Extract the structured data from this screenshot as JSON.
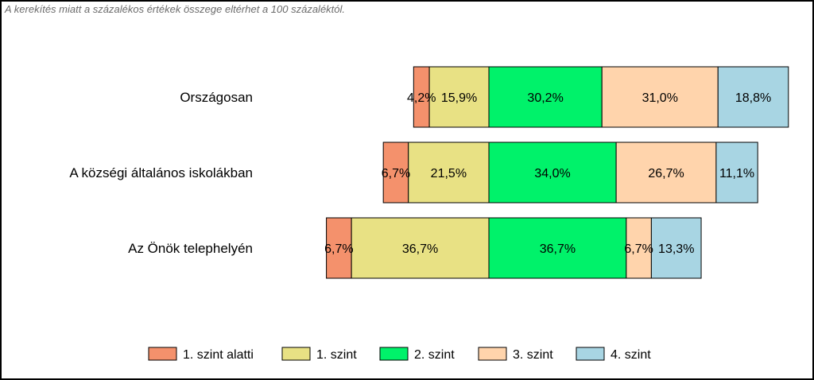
{
  "note": "A kerekítés miatt a  százalékos értékek összege eltérhet a 100 százaléktól.",
  "chart_data": {
    "type": "bar",
    "orientation": "horizontal",
    "stacked": "diverging",
    "title": "",
    "xlabel": "",
    "ylabel": "",
    "categories": [
      "Országosan",
      "A községi általános iskolákban",
      "Az Önök telephelyén"
    ],
    "series": [
      {
        "name": "1. szint alatti",
        "values": [
          4.2,
          6.7,
          6.7
        ],
        "labels": [
          "4,2%",
          "6,7%",
          "6,7%"
        ],
        "color": "#F4916C"
      },
      {
        "name": "1. szint",
        "values": [
          15.9,
          21.5,
          36.7
        ],
        "labels": [
          "15,9%",
          "21,5%",
          "36,7%"
        ],
        "color": "#E8E184"
      },
      {
        "name": "2. szint",
        "values": [
          30.2,
          34.0,
          36.7
        ],
        "labels": [
          "30,2%",
          "34,0%",
          "36,7%"
        ],
        "color": "#00F26A"
      },
      {
        "name": "3. szint",
        "values": [
          31.0,
          26.7,
          6.7
        ],
        "labels": [
          "31,0%",
          "26,7%",
          "6,7%"
        ],
        "color": "#FFD4AC"
      },
      {
        "name": "4. szint",
        "values": [
          18.8,
          11.1,
          13.3
        ],
        "labels": [
          "18,8%",
          "11,1%",
          "13,3%"
        ],
        "color": "#A8D5E3"
      }
    ],
    "baseline_series_boundary": "2. szint",
    "legend_position": "bottom",
    "grid": false
  }
}
